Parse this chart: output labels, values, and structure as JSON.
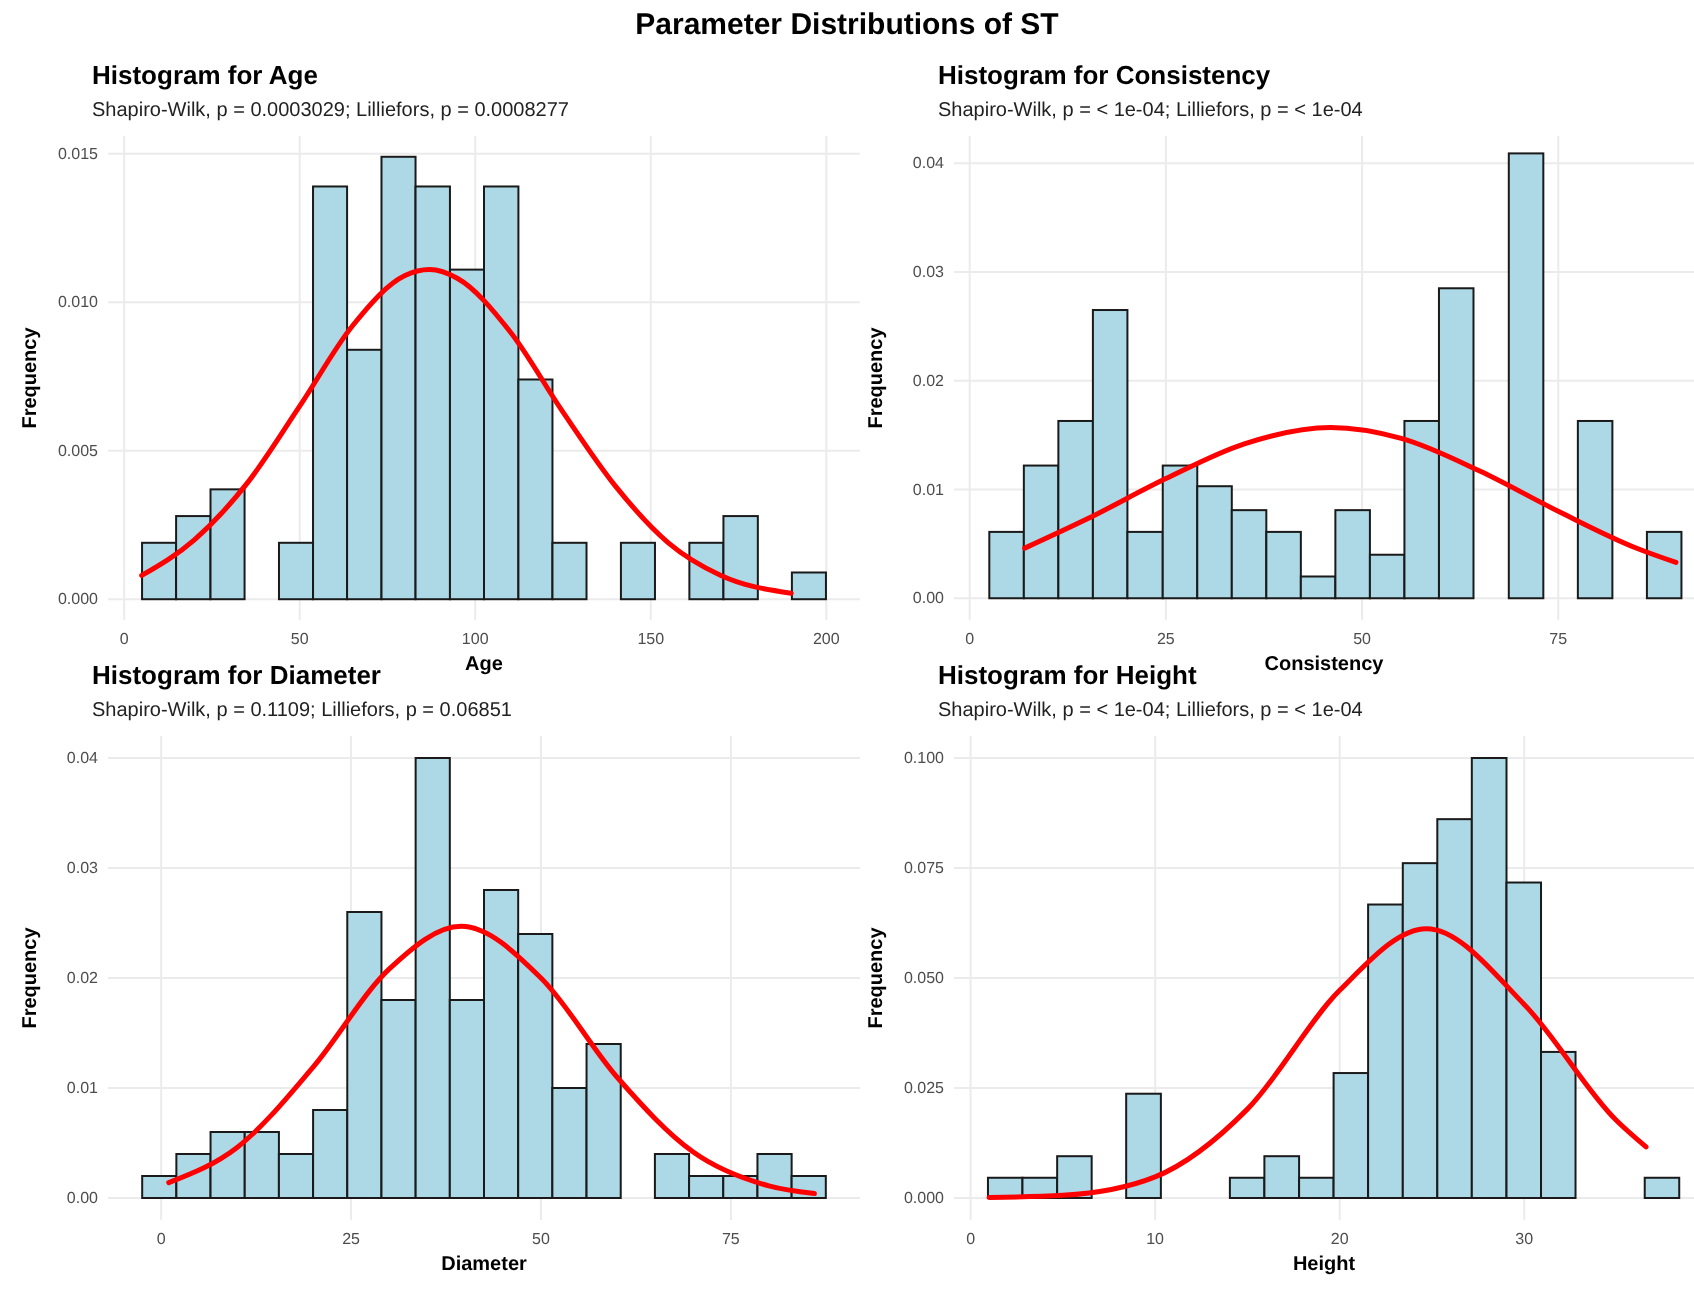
{
  "chart_data": [
    {
      "type": "histogram",
      "title": "Histogram for Age",
      "subtitle": "Shapiro-Wilk, p = 0.0003029; Lilliefors, p = 0.0008277",
      "xlabel": "Age",
      "ylabel": "Frequency",
      "annotations": [
        "Parameter Distributions of ST"
      ],
      "bins": [
        5.1,
        14.8,
        24.6,
        34.3,
        44.1,
        53.8,
        63.5,
        73.3,
        83.0,
        92.8,
        102.5,
        112.3,
        122.0,
        131.7,
        141.5,
        151.2,
        161.0,
        170.7,
        180.5,
        190.2,
        199.9
      ],
      "series": [
        {
          "color": "#add8e6",
          "values": [
            0.0019,
            0.0028,
            0.0037,
            0,
            0.0019,
            0.0139,
            0.0084,
            0.0149,
            0.0139,
            0.0111,
            0.0139,
            0.0074,
            0.0019,
            0,
            0.0019,
            0,
            0.0019,
            0.0028,
            0,
            0.0009
          ]
        },
        {
          "type": "line",
          "color": "#ff0000",
          "x": [
            5,
            20,
            35,
            50,
            65,
            80,
            87,
            95,
            110,
            125,
            140,
            155,
            170,
            190
          ],
          "values": [
            0.0008,
            0.002,
            0.0039,
            0.0065,
            0.0092,
            0.0109,
            0.0111,
            0.0108,
            0.009,
            0.0063,
            0.0038,
            0.0019,
            0.0008,
            0.0002
          ]
        }
      ],
      "xlim": [
        -4.6,
        209.6
      ],
      "xticks": [
        0,
        50,
        100,
        150,
        200
      ],
      "ylim": [
        -0.0007,
        0.0156
      ],
      "yticks": [
        {
          "value": 0,
          "label": "0.000"
        },
        {
          "value": 0.005,
          "label": "0.005"
        },
        {
          "value": 0.01,
          "label": "0.010"
        },
        {
          "value": 0.015,
          "label": "0.015"
        }
      ],
      "grid": true
    },
    {
      "type": "histogram",
      "title": "Histogram for Consistency",
      "subtitle": "Shapiro-Wilk, p = < 1e-04; Lilliefors, p = < 1e-04",
      "xlabel": "Consistency",
      "ylabel": "Frequency",
      "bins": [
        2.5,
        6.9,
        11.3,
        15.7,
        20.1,
        24.6,
        29.0,
        33.4,
        37.8,
        42.2,
        46.6,
        51.0,
        55.4,
        59.8,
        64.2,
        68.7,
        73.1,
        77.5,
        81.9,
        86.3,
        90.7
      ],
      "series": [
        {
          "color": "#add8e6",
          "values": [
            0.0061,
            0.0122,
            0.0163,
            0.0265,
            0.0061,
            0.0122,
            0.0103,
            0.0081,
            0.0061,
            0.002,
            0.0081,
            0.004,
            0.0163,
            0.0285,
            0,
            0.0409,
            0,
            0.0163,
            0,
            0.0061
          ]
        },
        {
          "type": "line",
          "color": "#ff0000",
          "x": [
            7,
            15,
            25,
            35,
            46,
            55,
            65,
            75,
            85,
            90
          ],
          "values": [
            0.0046,
            0.0073,
            0.011,
            0.0142,
            0.0157,
            0.0147,
            0.0117,
            0.008,
            0.0046,
            0.0033
          ]
        }
      ],
      "xlim": [
        -2,
        92.3
      ],
      "xticks": [
        0,
        25,
        50,
        75
      ],
      "ylim": [
        -0.002,
        0.0425
      ],
      "yticks": [
        {
          "value": 0,
          "label": "0.00"
        },
        {
          "value": 0.01,
          "label": "0.01"
        },
        {
          "value": 0.02,
          "label": "0.02"
        },
        {
          "value": 0.03,
          "label": "0.03"
        },
        {
          "value": 0.04,
          "label": "0.04"
        }
      ],
      "grid": true
    },
    {
      "type": "histogram",
      "title": "Histogram for Diameter",
      "subtitle": "Shapiro-Wilk, p = 0.1109; Lilliefors, p = 0.06851",
      "xlabel": "Diameter",
      "ylabel": "Frequency",
      "bins": [
        -2.5,
        2,
        6.5,
        11,
        15.5,
        20,
        24.5,
        29,
        33.5,
        38,
        42.5,
        47,
        51.5,
        56,
        60.5,
        65,
        69.5,
        74,
        78.5,
        83,
        87.5
      ],
      "series": [
        {
          "color": "#add8e6",
          "values": [
            0.002,
            0.004,
            0.006,
            0.006,
            0.004,
            0.008,
            0.026,
            0.018,
            0.04,
            0.018,
            0.028,
            0.024,
            0.01,
            0.014,
            0,
            0.004,
            0.002,
            0.002,
            0.004,
            0.002
          ]
        },
        {
          "type": "line",
          "color": "#ff0000",
          "x": [
            1,
            10,
            20,
            30,
            39.5,
            50,
            60,
            70,
            80,
            86
          ],
          "values": [
            0.0014,
            0.0046,
            0.0119,
            0.0208,
            0.0247,
            0.02,
            0.011,
            0.0042,
            0.0011,
            0.0004
          ]
        }
      ],
      "xlim": [
        -7,
        92
      ],
      "xticks": [
        0,
        25,
        50,
        75
      ],
      "ylim": [
        -0.002,
        0.042
      ],
      "yticks": [
        {
          "value": 0,
          "label": "0.00"
        },
        {
          "value": 0.01,
          "label": "0.01"
        },
        {
          "value": 0.02,
          "label": "0.02"
        },
        {
          "value": 0.03,
          "label": "0.03"
        },
        {
          "value": 0.04,
          "label": "0.04"
        }
      ],
      "grid": true
    },
    {
      "type": "histogram",
      "title": "Histogram for Height",
      "subtitle": "Shapiro-Wilk, p = < 1e-04; Lilliefors, p = < 1e-04",
      "xlabel": "Height",
      "ylabel": "Frequency",
      "bins": [
        0.94,
        2.81,
        4.69,
        6.56,
        8.43,
        10.31,
        12.18,
        14.05,
        15.92,
        17.8,
        19.67,
        21.54,
        23.42,
        25.29,
        27.16,
        29.04,
        30.91,
        32.78,
        34.65,
        36.53,
        38.4
      ],
      "series": [
        {
          "color": "#add8e6",
          "values": [
            0.0046,
            0.0046,
            0.0095,
            0,
            0.0237,
            0,
            0,
            0.0046,
            0.0095,
            0.0046,
            0.0284,
            0.0667,
            0.0761,
            0.0861,
            0.1,
            0.0717,
            0.0332,
            0,
            0,
            0.0046
          ]
        },
        {
          "type": "line",
          "color": "#ff0000",
          "x": [
            1,
            5,
            10,
            15,
            20,
            24.7,
            30,
            35,
            36.6
          ],
          "values": [
            0.0001,
            0.0006,
            0.0048,
            0.0202,
            0.0472,
            0.0612,
            0.044,
            0.0176,
            0.0116
          ]
        }
      ],
      "xlim": [
        -0.9,
        39.2
      ],
      "xticks": [
        0,
        10,
        20,
        30
      ],
      "ylim": [
        -0.005,
        0.105
      ],
      "yticks": [
        {
          "value": 0,
          "label": "0.000"
        },
        {
          "value": 0.025,
          "label": "0.025"
        },
        {
          "value": 0.05,
          "label": "0.050"
        },
        {
          "value": 0.075,
          "label": "0.075"
        },
        {
          "value": 0.1,
          "label": "0.100"
        }
      ],
      "grid": true
    }
  ]
}
